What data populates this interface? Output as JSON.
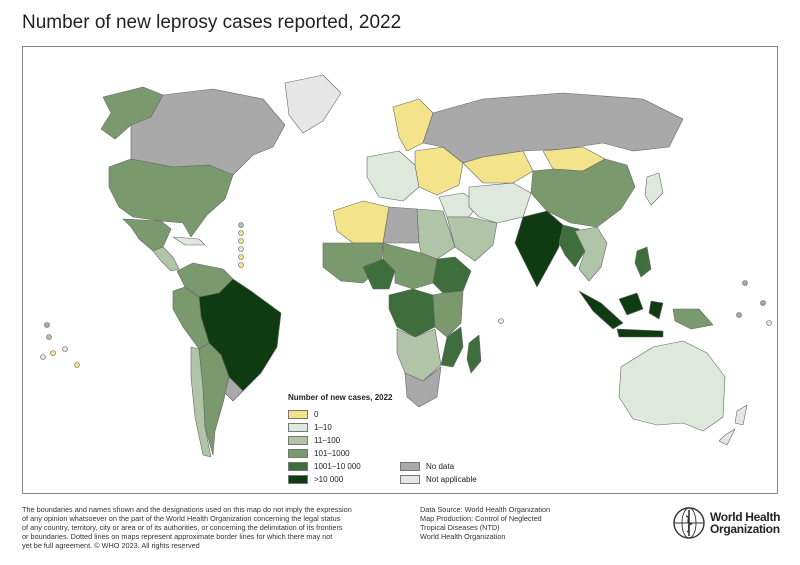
{
  "title": "Number of new leprosy cases reported, 2022",
  "legend": {
    "title": "Number of new cases, 2022",
    "items": [
      {
        "label": "0",
        "color": "#f3e48b"
      },
      {
        "label": "1–10",
        "color": "#dfe8dc"
      },
      {
        "label": "11–100",
        "color": "#b0c4a8"
      },
      {
        "label": "101–1000",
        "color": "#7a9a6e"
      },
      {
        "label": "1001–10 000",
        "color": "#3f6e3d"
      },
      {
        "label": ">10 000",
        "color": "#0f3b12"
      },
      {
        "label": "No data",
        "color": "#a9a9a9"
      },
      {
        "label": "Not applicable",
        "color": "#e6e6e6"
      }
    ]
  },
  "disclaimer": [
    "The boundaries and names shown and the designations used on this map do not imply the expression",
    "of any opinion whatsoever on the part of the World Health Organization concerning the legal status",
    "of any country, territory, city or area or of its authorities, or concerning the delimitation of its frontiers",
    "or boundaries. Dotted lines on maps represent approximate border lines for which there may not",
    "yet be full agreement. © WHO 2023. All rights reserved"
  ],
  "source": [
    "Data Source: World Health Organization",
    "Map Production: Control of Neglected",
    "Tropical Diseases (NTD)",
    "World Health Organization"
  ],
  "logo": {
    "line1": "World Health",
    "line2": "Organization"
  },
  "regions": [
    {
      "id": "alaska",
      "category": "101–1000"
    },
    {
      "id": "canada",
      "category": "No data"
    },
    {
      "id": "greenland",
      "category": "Not applicable"
    },
    {
      "id": "usa",
      "category": "101–1000"
    },
    {
      "id": "mexico",
      "category": "101–1000"
    },
    {
      "id": "central-america",
      "category": "11–100"
    },
    {
      "id": "caribbean",
      "category": "1–10"
    },
    {
      "id": "venezuela-colombia",
      "category": "101–1000"
    },
    {
      "id": "brazil",
      "category": ">10 000"
    },
    {
      "id": "peru-bolivia",
      "category": "101–1000"
    },
    {
      "id": "chile",
      "category": "11–100"
    },
    {
      "id": "argentina",
      "category": "101–1000"
    },
    {
      "id": "uruguay",
      "category": "No data"
    },
    {
      "id": "scandinavia",
      "category": "0"
    },
    {
      "id": "western-europe",
      "category": "1–10"
    },
    {
      "id": "eastern-europe",
      "category": "0"
    },
    {
      "id": "russia",
      "category": "No data"
    },
    {
      "id": "kazakhstan",
      "category": "0"
    },
    {
      "id": "mongolia",
      "category": "0"
    },
    {
      "id": "china",
      "category": "101–1000"
    },
    {
      "id": "middle-east",
      "category": "1–10"
    },
    {
      "id": "arabian-peninsula",
      "category": "11–100"
    },
    {
      "id": "iran-central-asia",
      "category": "1–10"
    },
    {
      "id": "india",
      "category": ">10 000"
    },
    {
      "id": "bangladesh-myanmar",
      "category": "1001–10 000"
    },
    {
      "id": "southeast-asia",
      "category": "11–100"
    },
    {
      "id": "indonesia",
      "category": ">10 000"
    },
    {
      "id": "philippines",
      "category": "1001–10 000"
    },
    {
      "id": "papua",
      "category": "101–1000"
    },
    {
      "id": "japan",
      "category": "1–10"
    },
    {
      "id": "australia",
      "category": "1–10"
    },
    {
      "id": "new-zealand",
      "category": "Not applicable"
    },
    {
      "id": "north-africa-west",
      "category": "0"
    },
    {
      "id": "north-africa-east",
      "category": "11–100"
    },
    {
      "id": "libya",
      "category": "No data"
    },
    {
      "id": "west-africa",
      "category": "101–1000"
    },
    {
      "id": "nigeria",
      "category": "1001–10 000"
    },
    {
      "id": "central-africa",
      "category": "101–1000"
    },
    {
      "id": "drc",
      "category": "1001–10 000"
    },
    {
      "id": "ethiopia",
      "category": "1001–10 000"
    },
    {
      "id": "east-africa",
      "category": "101–1000"
    },
    {
      "id": "mozambique",
      "category": "1001–10 000"
    },
    {
      "id": "madagascar",
      "category": "1001–10 000"
    },
    {
      "id": "southern-africa",
      "category": "11–100"
    },
    {
      "id": "south-africa",
      "category": "No data"
    }
  ]
}
